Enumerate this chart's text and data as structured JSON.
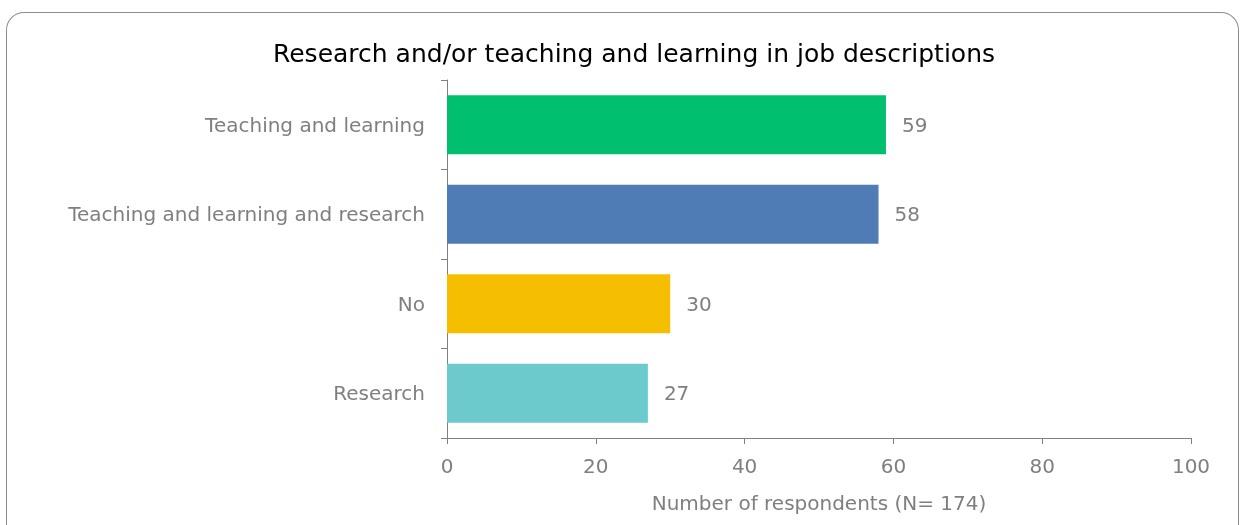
{
  "chart_data": {
    "type": "bar",
    "orientation": "horizontal",
    "title": "Research and/or teaching and learning in job descriptions",
    "xlabel": "Number of respondents (N= 174)",
    "categories": [
      "Teaching and learning",
      "Teaching and learning and research",
      "No",
      "Research"
    ],
    "values": [
      59,
      58,
      30,
      27
    ],
    "colors": [
      "#00bf6f",
      "#4f7cb5",
      "#f5bf00",
      "#6ccacd"
    ],
    "xlim": [
      0,
      100
    ],
    "xticks": [
      0,
      20,
      40,
      60,
      80,
      100
    ],
    "grid": false,
    "data_labels": true
  }
}
